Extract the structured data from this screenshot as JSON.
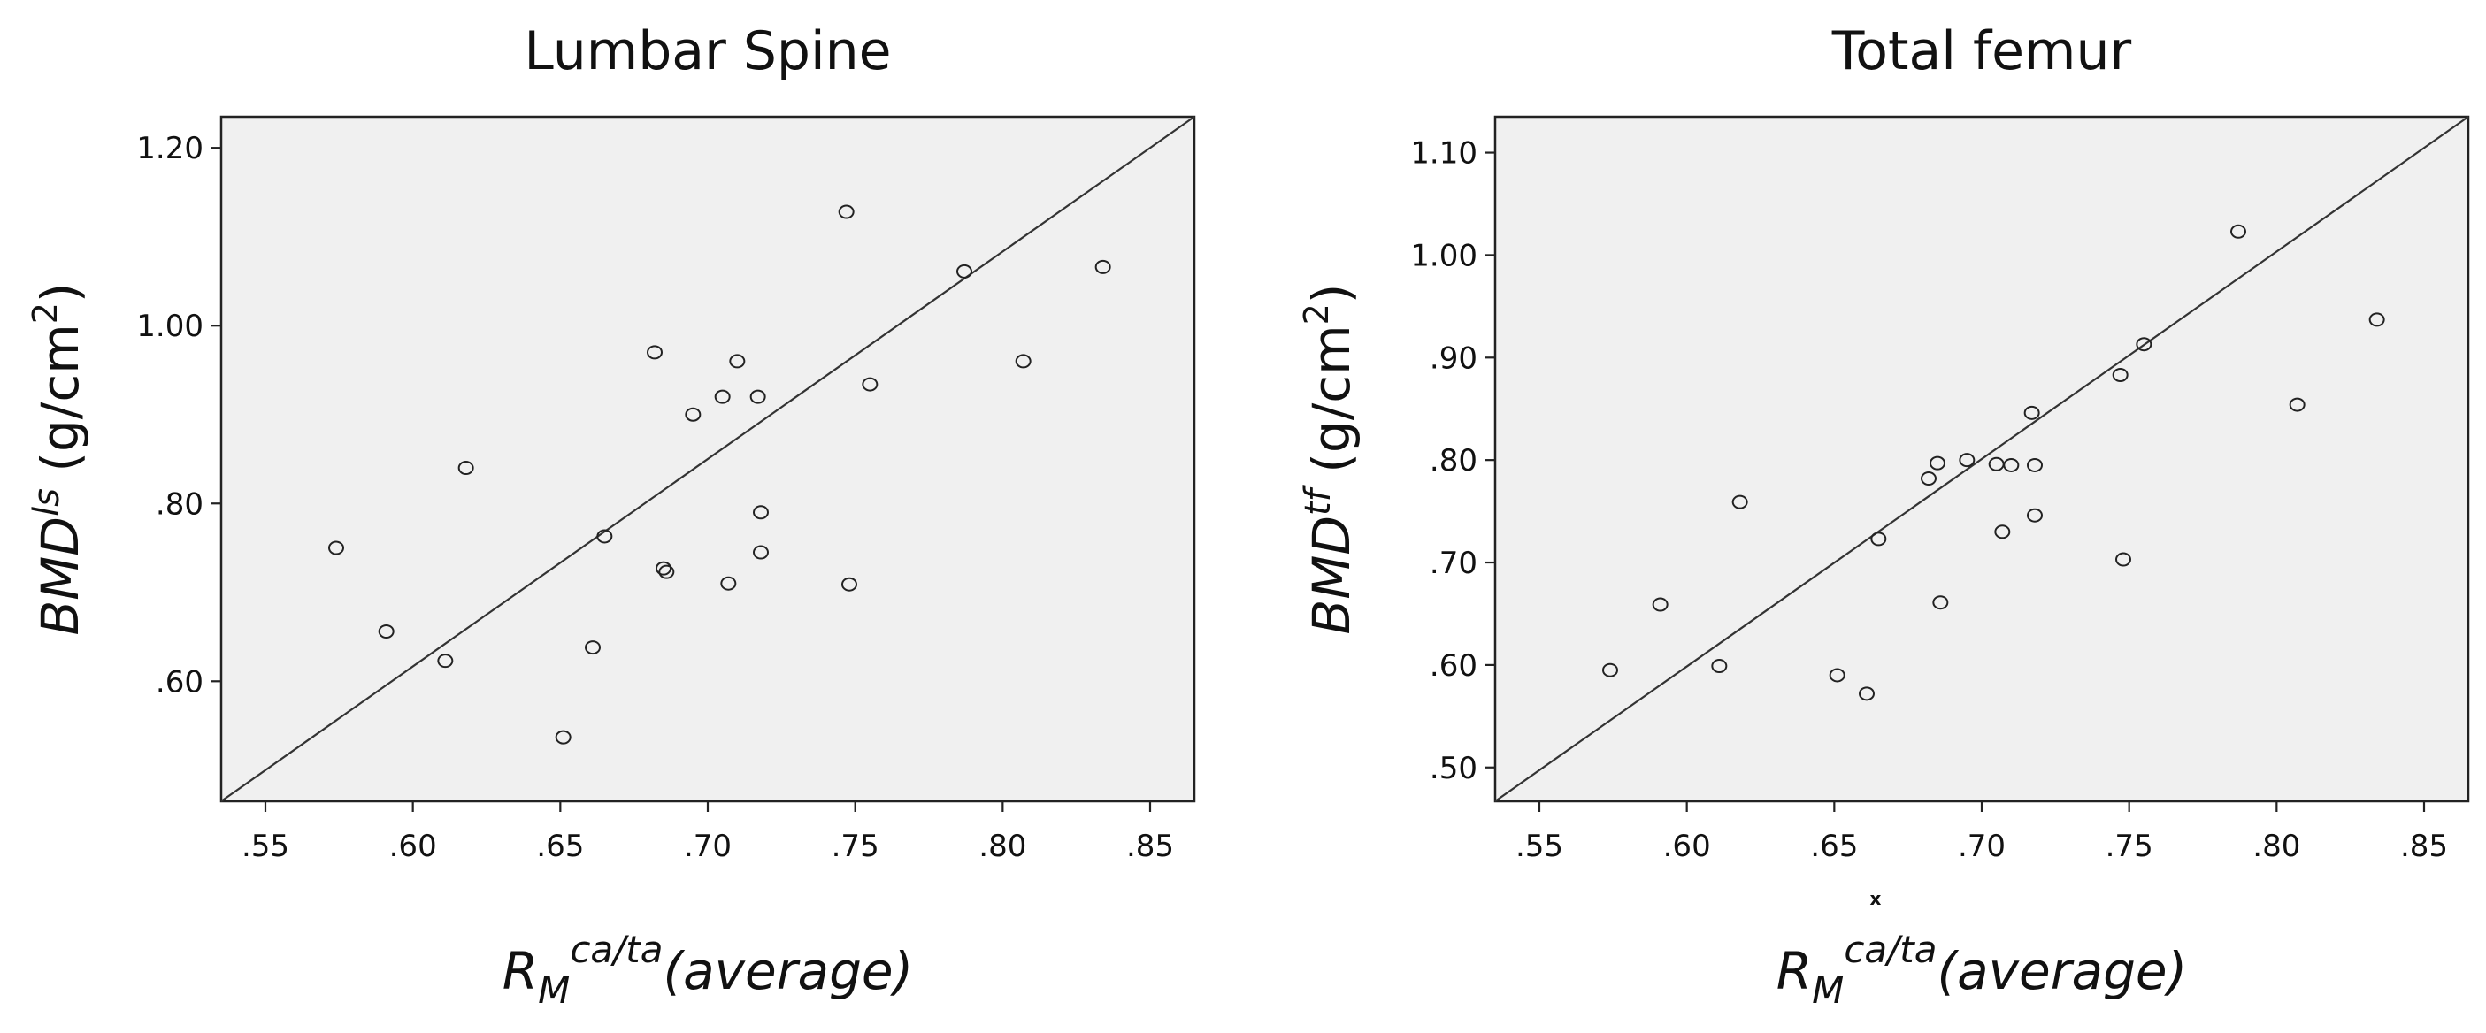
{
  "chart_data": [
    {
      "type": "scatter",
      "title": "Lumbar Spine",
      "xlabel_main": "R",
      "xlabel_sub": "M",
      "xlabel_sup": "ca/ta",
      "xlabel_tail": "(average)",
      "ylabel_main": "BMD",
      "ylabel_sup": "ls",
      "ylabel_unit": " (g/cm",
      "ylabel_unit_sup": "2",
      "ylabel_unit_close": ")",
      "xlim": [
        0.535,
        0.865
      ],
      "ylim": [
        0.465,
        1.235
      ],
      "xticks": [
        ".55",
        ".60",
        ".65",
        ".70",
        ".75",
        ".80",
        ".85"
      ],
      "xtick_values": [
        0.55,
        0.6,
        0.65,
        0.7,
        0.75,
        0.8,
        0.85
      ],
      "yticks": [
        ".60",
        ".80",
        "1.00",
        "1.20"
      ],
      "ytick_values": [
        0.6,
        0.8,
        1.0,
        1.2
      ],
      "reference_line": [
        [
          0.535,
          0.465
        ],
        [
          0.865,
          1.235
        ]
      ],
      "points": [
        {
          "x": 0.574,
          "y": 0.75
        },
        {
          "x": 0.591,
          "y": 0.656
        },
        {
          "x": 0.611,
          "y": 0.623
        },
        {
          "x": 0.618,
          "y": 0.84
        },
        {
          "x": 0.651,
          "y": 0.537
        },
        {
          "x": 0.661,
          "y": 0.638
        },
        {
          "x": 0.665,
          "y": 0.763
        },
        {
          "x": 0.682,
          "y": 0.97
        },
        {
          "x": 0.685,
          "y": 0.727
        },
        {
          "x": 0.686,
          "y": 0.723
        },
        {
          "x": 0.695,
          "y": 0.9
        },
        {
          "x": 0.705,
          "y": 0.92
        },
        {
          "x": 0.707,
          "y": 0.71
        },
        {
          "x": 0.71,
          "y": 0.96
        },
        {
          "x": 0.717,
          "y": 0.92
        },
        {
          "x": 0.718,
          "y": 0.79
        },
        {
          "x": 0.718,
          "y": 0.745
        },
        {
          "x": 0.747,
          "y": 1.128
        },
        {
          "x": 0.748,
          "y": 0.709
        },
        {
          "x": 0.755,
          "y": 0.934
        },
        {
          "x": 0.787,
          "y": 1.061
        },
        {
          "x": 0.807,
          "y": 0.96
        },
        {
          "x": 0.834,
          "y": 1.066
        }
      ],
      "grid": false,
      "background": "#f0f0f0"
    },
    {
      "type": "scatter",
      "title": "Total femur",
      "xlabel_main": "R",
      "xlabel_sub": "M",
      "xlabel_sup": "ca/ta",
      "xlabel_tail": "(average)",
      "x_marker": "x",
      "ylabel_main": "BMD",
      "ylabel_sup": "tf",
      "ylabel_unit": "  (g/cm",
      "ylabel_unit_sup": "2",
      "ylabel_unit_close": ")",
      "xlim": [
        0.535,
        0.865
      ],
      "ylim": [
        0.467,
        1.135
      ],
      "xticks": [
        ".55",
        ".60",
        ".65",
        ".70",
        ".75",
        ".80",
        ".85"
      ],
      "xtick_values": [
        0.55,
        0.6,
        0.65,
        0.7,
        0.75,
        0.8,
        0.85
      ],
      "yticks": [
        ".50",
        ".60",
        ".70",
        ".80",
        ".90",
        "1.00",
        "1.10"
      ],
      "ytick_values": [
        0.5,
        0.6,
        0.7,
        0.8,
        0.9,
        1.0,
        1.1
      ],
      "reference_line": [
        [
          0.535,
          0.467
        ],
        [
          0.865,
          1.135
        ]
      ],
      "points": [
        {
          "x": 0.574,
          "y": 0.595
        },
        {
          "x": 0.591,
          "y": 0.659
        },
        {
          "x": 0.611,
          "y": 0.599
        },
        {
          "x": 0.618,
          "y": 0.759
        },
        {
          "x": 0.651,
          "y": 0.59
        },
        {
          "x": 0.661,
          "y": 0.572
        },
        {
          "x": 0.665,
          "y": 0.723
        },
        {
          "x": 0.682,
          "y": 0.782
        },
        {
          "x": 0.685,
          "y": 0.797
        },
        {
          "x": 0.686,
          "y": 0.661
        },
        {
          "x": 0.695,
          "y": 0.8
        },
        {
          "x": 0.705,
          "y": 0.796
        },
        {
          "x": 0.707,
          "y": 0.73
        },
        {
          "x": 0.71,
          "y": 0.795
        },
        {
          "x": 0.717,
          "y": 0.846
        },
        {
          "x": 0.718,
          "y": 0.795
        },
        {
          "x": 0.718,
          "y": 0.746
        },
        {
          "x": 0.747,
          "y": 0.883
        },
        {
          "x": 0.748,
          "y": 0.703
        },
        {
          "x": 0.755,
          "y": 0.913
        },
        {
          "x": 0.787,
          "y": 1.023
        },
        {
          "x": 0.807,
          "y": 0.854
        },
        {
          "x": 0.834,
          "y": 0.937
        }
      ],
      "grid": false,
      "background": "#f0f0f0"
    }
  ]
}
